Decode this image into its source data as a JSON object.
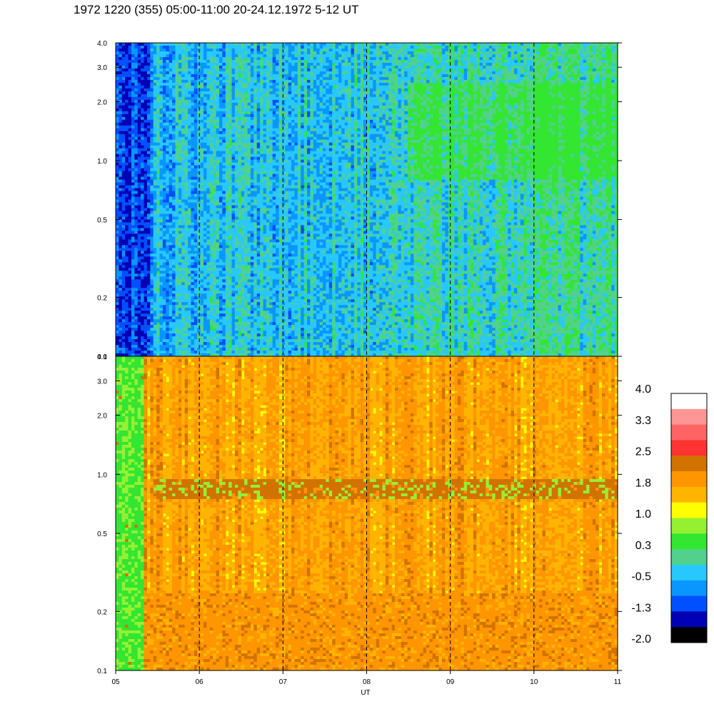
{
  "title": "1972 1220 (355) 05:00-11:00 20-24.12.1972  5-12 UT",
  "chart_data": {
    "type": "heatmap",
    "title": "1972 1220 (355) 05:00-11:00 20-24.12.1972  5-12 UT",
    "xlabel": "UT",
    "x_tick_labels": [
      "05",
      "06",
      "07",
      "08",
      "09",
      "10",
      "11"
    ],
    "x_range": [
      5,
      11
    ],
    "x_scale": "linear",
    "dashed_hour_lines": [
      6,
      7,
      8,
      9,
      10
    ],
    "panels": [
      {
        "name": "",
        "y_scale": "log",
        "y_range": [
          0.1,
          4.0
        ],
        "y_ticks": [
          0.1,
          0.2,
          0.5,
          1.0,
          2.0,
          3.0,
          4.0
        ],
        "y_tick_labels": [
          "0.1",
          "0.2",
          "0.5",
          "1.0",
          "2.0",
          "3.0",
          "4.0"
        ],
        "dominant_colors": [
          "#32e632",
          "#50d28c",
          "#28c8ff",
          "#0a96ff",
          "#0050ff",
          "#0000b4"
        ]
      },
      {
        "name": "",
        "y_scale": "log",
        "y_range": [
          0.1,
          4.0
        ],
        "y_ticks": [
          0.1,
          0.2,
          0.5,
          1.0,
          2.0,
          3.0,
          4.0
        ],
        "y_tick_labels": [
          "0.1",
          "0.2",
          "0.5",
          "1.0",
          "2.0",
          "3.0",
          "4.0"
        ],
        "dominant_colors": [
          "#ffff00",
          "#ffb400",
          "#ff9600",
          "#d27300",
          "#96f032",
          "#32e632"
        ],
        "band_range": [
          0.75,
          0.95
        ],
        "band_start_x": 5.45
      }
    ],
    "colorbar": {
      "labels": [
        "4.0",
        "3.3",
        "2.5",
        "1.8",
        "1.0",
        "0.3",
        "-0.5",
        "-1.3",
        "-2.0"
      ],
      "range": [
        -2.0,
        4.0
      ],
      "colors_top_to_bottom": [
        "#ffffff",
        "#ff9696",
        "#ff6464",
        "#ff3232",
        "#d27300",
        "#ff9600",
        "#ffb400",
        "#ffff00",
        "#96f032",
        "#32e632",
        "#50d28c",
        "#28c8ff",
        "#0a96ff",
        "#0050ff",
        "#0000b4",
        "#000000"
      ]
    },
    "grid": false,
    "legend": "none"
  }
}
